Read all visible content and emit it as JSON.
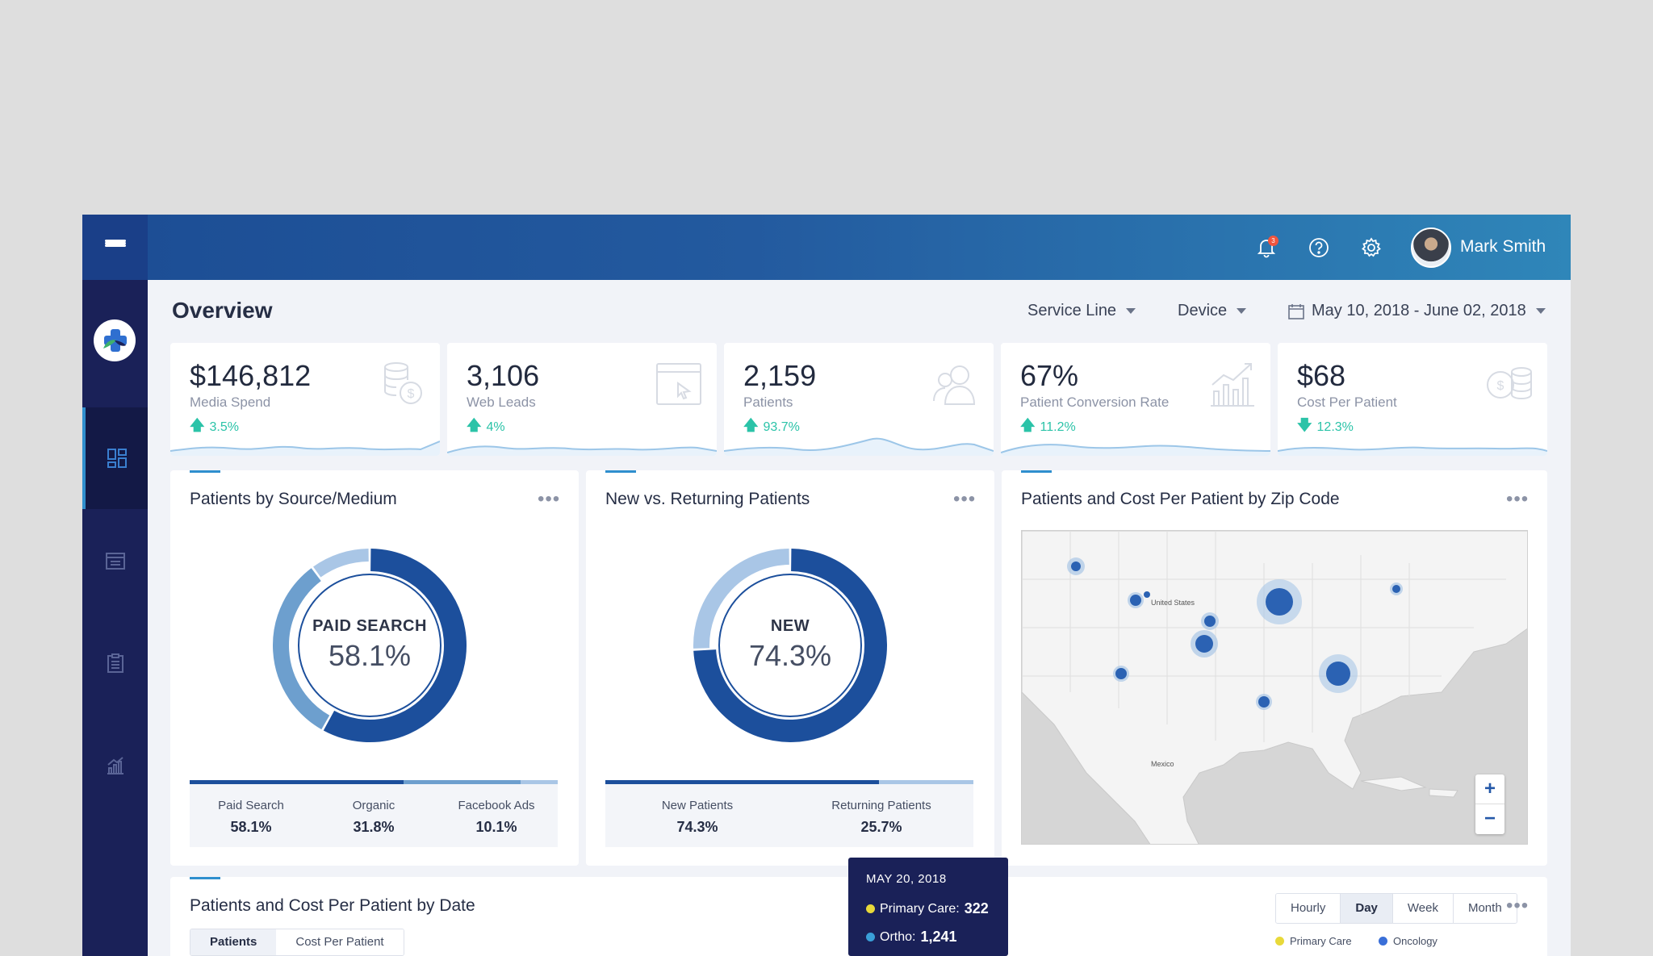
{
  "header": {
    "user_name": "Mark Smith",
    "notification_count": "3"
  },
  "page": {
    "title": "Overview",
    "filters": {
      "service_line": "Service Line",
      "device": "Device",
      "date_range": "May 10, 2018 - June 02, 2018"
    }
  },
  "kpis": [
    {
      "value": "$146,812",
      "label": "Media Spend",
      "change": "3.5%",
      "direction": "up",
      "icon": "coins-dollar-icon"
    },
    {
      "value": "3,106",
      "label": "Web Leads",
      "change": "4%",
      "direction": "up",
      "icon": "browser-cursor-icon"
    },
    {
      "value": "2,159",
      "label": "Patients",
      "change": "93.7%",
      "direction": "up",
      "icon": "patients-icon"
    },
    {
      "value": "67%",
      "label": "Patient Conversion Rate",
      "change": "11.2%",
      "direction": "up",
      "icon": "bar-chart-trend-icon"
    },
    {
      "value": "$68",
      "label": "Cost Per Patient",
      "change": "12.3%",
      "direction": "down",
      "icon": "coins-stack-icon"
    }
  ],
  "source_panel": {
    "title": "Patients by Source/Medium",
    "center_label": "PAID SEARCH",
    "center_value": "58.1%",
    "segments": [
      {
        "name": "Paid Search",
        "value": "58.1%",
        "share": 0.581,
        "color": "#1c4f9c"
      },
      {
        "name": "Organic",
        "value": "31.8%",
        "share": 0.318,
        "color": "#6d9fce"
      },
      {
        "name": "Facebook Ads",
        "value": "10.1%",
        "share": 0.101,
        "color": "#a9c6e6"
      }
    ]
  },
  "returning_panel": {
    "title": "New vs. Returning Patients",
    "center_label": "NEW",
    "center_value": "74.3%",
    "segments": [
      {
        "name": "New Patients",
        "value": "74.3%",
        "share": 0.743,
        "color": "#1c4f9c"
      },
      {
        "name": "Returning Patients",
        "value": "25.7%",
        "share": 0.257,
        "color": "#a9c6e6"
      }
    ]
  },
  "map_panel": {
    "title": "Patients and Cost Per Patient by Zip Code",
    "country_label": "United States",
    "neighbor_label": "Mexico",
    "zoom_in": "+",
    "zoom_out": "−"
  },
  "date_panel": {
    "title": "Patients and Cost Per Patient by Date",
    "tabs": [
      "Patients",
      "Cost Per Patient"
    ],
    "active_tab": "Patients",
    "granularity": [
      "Hourly",
      "Day",
      "Week",
      "Month"
    ],
    "active_granularity": "Day",
    "legend": [
      {
        "name": "Primary Care",
        "color": "#e8d93a"
      },
      {
        "name": "Oncology",
        "color": "#3a6fd8"
      }
    ]
  },
  "tooltip": {
    "date": "MAY 20, 2018",
    "rows": [
      {
        "label": "Primary Care:",
        "value": "322",
        "color": "#e8d93a"
      },
      {
        "label": "Ortho:",
        "value": "1,241",
        "color": "#3a9fd8"
      }
    ]
  }
}
